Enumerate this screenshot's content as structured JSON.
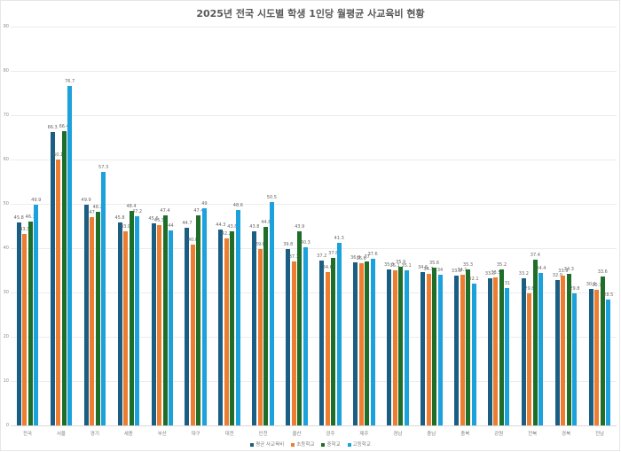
{
  "chart_data": {
    "type": "bar",
    "title": "2025년 전국 시도별 학생 1인당 월평균 사교육비 현황",
    "xlabel": "",
    "ylabel": "",
    "ylim": [
      0,
      90
    ],
    "yticks": [
      0,
      10,
      20,
      30,
      40,
      50,
      60,
      70,
      80,
      90
    ],
    "grid": true,
    "legend_position": "bottom",
    "categories": [
      "전국",
      "서울",
      "경기",
      "세종",
      "부산",
      "대구",
      "대전",
      "인천",
      "울산",
      "광주",
      "제주",
      "경남",
      "충남",
      "충북",
      "강원",
      "전북",
      "경북",
      "전남"
    ],
    "series": [
      {
        "name": "평균 사교육비",
        "color": "#1b5e84",
        "values": [
          45.8,
          66.3,
          49.9,
          45.8,
          45.6,
          44.7,
          44.3,
          43.8,
          39.8,
          37.2,
          36.8,
          35.3,
          34.6,
          33.9,
          33.3,
          33.2,
          32.9,
          30.9
        ]
      },
      {
        "name": "초등학교",
        "color": "#ed7d31",
        "values": [
          43.3,
          60.1,
          47,
          43.9,
          45.3,
          40.8,
          42.2,
          39.8,
          37.1,
          34.6,
          36.6,
          35.1,
          34.3,
          34.1,
          33.5,
          29.8,
          33.9,
          30.7
        ]
      },
      {
        "name": "중학교",
        "color": "#1e6e2a",
        "values": [
          46.1,
          66.4,
          48.2,
          48.4,
          47.4,
          47.4,
          43.8,
          44.8,
          43.9,
          37.8,
          37,
          35.9,
          35.6,
          35.3,
          35.2,
          37.4,
          34.3,
          33.6
        ]
      },
      {
        "name": "고등학교",
        "color": "#1ba1dc",
        "values": [
          49.9,
          76.7,
          57.3,
          47.2,
          44,
          49,
          48.6,
          50.5,
          40.3,
          41.3,
          37.6,
          35.1,
          34,
          32.1,
          31,
          34.4,
          29.8,
          28.5
        ]
      }
    ]
  },
  "title": "2025년 전국 시도별 학생 1인당 월평균 사교육비 현황",
  "legend": [
    {
      "label": "평균 사교육비",
      "color": "#1b5e84"
    },
    {
      "label": "초등학교",
      "color": "#ed7d31"
    },
    {
      "label": "중학교",
      "color": "#1e6e2a"
    },
    {
      "label": "고등학교",
      "color": "#1ba1dc"
    }
  ]
}
